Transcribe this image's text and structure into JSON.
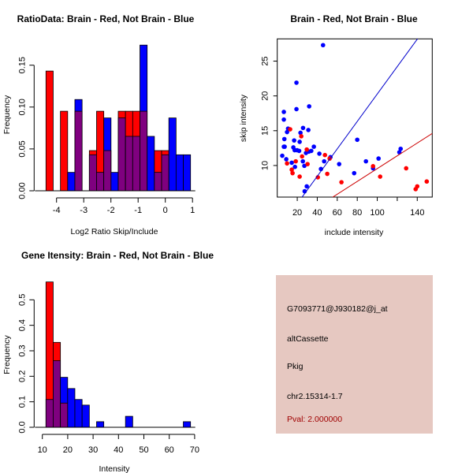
{
  "chart_data": [
    {
      "type": "bar",
      "title": "RatioData: Brain - Red, Not Brain - Blue",
      "xlabel": "Log2 Ratio Skip/Include",
      "ylabel": "Frequency",
      "bin_start": -4.39,
      "bin_width": 0.2657,
      "xlim": [
        -4.39,
        0.93
      ],
      "ylim": [
        0,
        0.174
      ],
      "xticks": [
        -4,
        -3,
        -2,
        -1,
        0,
        1
      ],
      "xtick_labels": [
        "-4",
        "-3",
        "-2",
        "-1",
        "0",
        "1"
      ],
      "yticks": [
        0,
        0.05,
        0.1,
        0.15
      ],
      "ytick_labels": [
        "0.00",
        "0.05",
        "0.10",
        "0.15"
      ],
      "series": [
        {
          "name": "Brain",
          "color": "#ff0000",
          "values": [
            0.143,
            0,
            0.095,
            0,
            0.095,
            0,
            0.048,
            0.095,
            0.048,
            0,
            0.095,
            0.095,
            0.095,
            0.095,
            0,
            0.048,
            0.048,
            0,
            0,
            0
          ]
        },
        {
          "name": "Not Brain",
          "color": "#0000ff",
          "values": [
            0,
            0,
            0,
            0.022,
            0.109,
            0,
            0.043,
            0.022,
            0.087,
            0.022,
            0.087,
            0.065,
            0.065,
            0.174,
            0.065,
            0.022,
            0.043,
            0.087,
            0.043,
            0.043
          ]
        }
      ],
      "overlap_color": "#7f007f"
    },
    {
      "type": "scatter",
      "title": "Brain - Red, Not Brain - Blue",
      "xlabel": "include intensity",
      "ylabel": "skip intensity",
      "xlim": [
        0,
        155
      ],
      "ylim": [
        5.46,
        28.2
      ],
      "xticks": [
        20,
        40,
        60,
        80,
        100,
        120,
        140
      ],
      "xtick_labels": [
        "20",
        "40",
        "60",
        "80",
        "100",
        "",
        "140"
      ],
      "yticks": [
        10,
        15,
        20,
        25
      ],
      "ytick_labels": [
        "10",
        "15",
        "20",
        "25"
      ],
      "series": [
        {
          "name": "Not Brain",
          "color": "#0000ff",
          "points": [
            [
              45.8,
              27.3
            ],
            [
              19.2,
              21.9
            ],
            [
              19.2,
              18.1
            ],
            [
              31.9,
              18.5
            ],
            [
              6.6,
              17.7
            ],
            [
              6.6,
              16.6
            ],
            [
              10.8,
              15.3
            ],
            [
              9.8,
              14.8
            ],
            [
              25.8,
              15.4
            ],
            [
              31.1,
              15.1
            ],
            [
              23.2,
              14.7
            ],
            [
              7.1,
              13.8
            ],
            [
              16.9,
              13.6
            ],
            [
              22.4,
              13.4
            ],
            [
              6.6,
              12.7
            ],
            [
              7.4,
              12.7
            ],
            [
              16.1,
              12.6
            ],
            [
              17.4,
              12.2
            ],
            [
              19.8,
              12.2
            ],
            [
              21.9,
              12.1
            ],
            [
              28.7,
              11.8
            ],
            [
              30.0,
              12.1
            ],
            [
              31.6,
              12.0
            ],
            [
              34.0,
              12.1
            ],
            [
              36.6,
              12.7
            ],
            [
              5.0,
              11.4
            ],
            [
              9.0,
              10.9
            ],
            [
              14.5,
              10.4
            ],
            [
              25.6,
              10.6
            ],
            [
              17.7,
              9.8
            ],
            [
              27.1,
              9.95
            ],
            [
              42.1,
              11.7
            ],
            [
              46.9,
              10.6
            ],
            [
              53.2,
              11.2
            ],
            [
              43.7,
              9.5
            ],
            [
              61.9,
              10.2
            ],
            [
              29.5,
              7.0
            ],
            [
              27.4,
              6.3
            ],
            [
              80.0,
              13.7
            ],
            [
              76.9,
              8.9
            ],
            [
              88.7,
              10.6
            ],
            [
              95.8,
              9.6
            ],
            [
              101.3,
              11.0
            ],
            [
              122.1,
              11.9
            ],
            [
              123.4,
              12.4
            ]
          ]
        },
        {
          "name": "Brain",
          "color": "#ff0000",
          "points": [
            [
              12.9,
              15.2
            ],
            [
              24.0,
              14.2
            ],
            [
              29.5,
              12.3
            ],
            [
              24.8,
              11.3
            ],
            [
              18.5,
              10.6
            ],
            [
              9.8,
              10.3
            ],
            [
              30.3,
              10.2
            ],
            [
              14.5,
              9.4
            ],
            [
              15.3,
              8.9
            ],
            [
              22.4,
              8.4
            ],
            [
              47.7,
              11.5
            ],
            [
              52.4,
              11.0
            ],
            [
              50.0,
              8.8
            ],
            [
              40.6,
              8.3
            ],
            [
              64.2,
              7.6
            ],
            [
              95.8,
              9.9
            ],
            [
              102.9,
              8.4
            ],
            [
              128.9,
              9.6
            ],
            [
              140.0,
              7.0
            ],
            [
              138.4,
              6.6
            ],
            [
              149.5,
              7.7
            ]
          ]
        }
      ],
      "lines": [
        {
          "name": "Not Brain fit",
          "color": "#0000cc",
          "slope": 0.197,
          "intercept": 0.57
        },
        {
          "name": "Brain fit",
          "color": "#cc0000",
          "slope": 0.092,
          "intercept": 0.35
        }
      ]
    },
    {
      "type": "bar",
      "title": "Gene Itensity: Brain - Red, Not Brain - Blue",
      "xlabel": "Intensity",
      "ylabel": "Frequency",
      "bin_start": 11.43,
      "bin_width": 2.87,
      "xlim": [
        10,
        70
      ],
      "ylim": [
        0,
        0.57
      ],
      "xticks": [
        10,
        20,
        30,
        40,
        50,
        60,
        70
      ],
      "xtick_labels": [
        "10",
        "20",
        "30",
        "40",
        "50",
        "60",
        "70"
      ],
      "yticks": [
        0,
        0.1,
        0.2,
        0.3,
        0.4,
        0.5
      ],
      "ytick_labels": [
        "0.0",
        "0.1",
        "0.2",
        "0.3",
        "0.4",
        "0.5"
      ],
      "series": [
        {
          "name": "Brain",
          "color": "#ff0000",
          "values": [
            0.57,
            0.333,
            0.095,
            0,
            0,
            0,
            0,
            0,
            0,
            0,
            0,
            0,
            0,
            0,
            0,
            0,
            0,
            0,
            0,
            0
          ]
        },
        {
          "name": "Not Brain",
          "color": "#0000ff",
          "values": [
            0.109,
            0.261,
            0.196,
            0.152,
            0.109,
            0.087,
            0,
            0.022,
            0,
            0,
            0,
            0.043,
            0,
            0,
            0,
            0,
            0,
            0,
            0,
            0.022
          ]
        }
      ],
      "overlap_color": "#7f007f"
    }
  ],
  "info": {
    "probe": "G7093771@J930182@j_at",
    "event_type": "altCassette",
    "gene": "Pkig",
    "location": "chr2.15314-1.7",
    "pval": "Pval: 2.000000",
    "pval_color": "#a00000"
  }
}
